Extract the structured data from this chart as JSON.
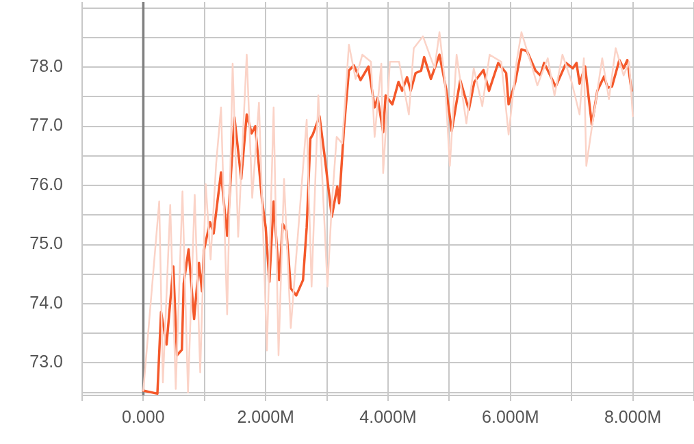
{
  "chart_data": {
    "type": "line",
    "marker": "none",
    "grid": true,
    "xlim": [
      -1,
      9
    ],
    "xticks": [
      {
        "value": -1,
        "label": null
      },
      {
        "value": 0,
        "label": "0.000"
      },
      {
        "value": 1,
        "label": null
      },
      {
        "value": 2,
        "label": "2.000M"
      },
      {
        "value": 3,
        "label": null
      },
      {
        "value": 4,
        "label": "4.000M"
      },
      {
        "value": 5,
        "label": null
      },
      {
        "value": 6,
        "label": "6.000M"
      },
      {
        "value": 7,
        "label": null
      },
      {
        "value": 8,
        "label": "8.000M"
      },
      {
        "value": 9,
        "label": null
      }
    ],
    "ylim": [
      72.45,
      79.1
    ],
    "yticks": [
      {
        "value": 72.5,
        "label": null
      },
      {
        "value": 73,
        "label": "73.0"
      },
      {
        "value": 73.5,
        "label": null
      },
      {
        "value": 74,
        "label": "74.0"
      },
      {
        "value": 74.5,
        "label": null
      },
      {
        "value": 75,
        "label": "75.0"
      },
      {
        "value": 75.5,
        "label": null
      },
      {
        "value": 76,
        "label": "76.0"
      },
      {
        "value": 76.5,
        "label": null
      },
      {
        "value": 77,
        "label": "77.0"
      },
      {
        "value": 77.5,
        "label": null
      },
      {
        "value": 78,
        "label": "78.0"
      },
      {
        "value": 78.5,
        "label": null
      },
      {
        "value": 79,
        "label": null
      }
    ],
    "ref_lines": [
      {
        "axis": "x",
        "value": 0,
        "color": "#808080"
      }
    ],
    "series": [
      {
        "color": "#fbd3c7",
        "x": [
          0,
          0.26,
          0.32,
          0.44,
          0.53,
          0.64,
          0.73,
          0.84,
          0.93,
          1.02,
          1.1,
          1.19,
          1.27,
          1.37,
          1.46,
          1.55,
          1.69,
          1.78,
          1.89,
          2.02,
          2.13,
          2.21,
          2.3,
          2.41,
          2.5,
          2.67,
          2.75,
          2.86,
          3.01,
          3.08,
          3.16,
          3.25,
          3.36,
          3.47,
          3.58,
          3.72,
          3.78,
          3.89,
          3.92,
          4.03,
          4.18,
          4.34,
          4.42,
          4.57,
          4.76,
          4.84,
          4.93,
          5.01,
          5.12,
          5.28,
          5.4,
          5.54,
          5.66,
          5.85,
          5.97,
          6.1,
          6.18,
          6.36,
          6.44,
          6.61,
          6.72,
          6.85,
          7,
          7.13,
          7.2,
          7.24,
          7.34,
          7.5,
          7.61,
          7.72,
          7.85,
          7.94,
          8
        ],
        "values": [
          72.53,
          75.73,
          72.67,
          75.67,
          72.56,
          75.9,
          72.5,
          75.84,
          72.84,
          76.02,
          74.75,
          76.36,
          77.32,
          73.82,
          78.06,
          75.13,
          78.21,
          75.79,
          77.4,
          73.21,
          77.32,
          73.13,
          76.11,
          73.59,
          74.81,
          77.11,
          74.29,
          77.52,
          74.29,
          75.67,
          76.82,
          76.71,
          78.38,
          77.8,
          78.21,
          78.09,
          76.82,
          78.06,
          76.21,
          78.09,
          78.09,
          77.2,
          78.32,
          78.52,
          77.98,
          78.59,
          77.75,
          76.33,
          78.21,
          77.05,
          77.98,
          77.34,
          78.21,
          78.09,
          76.86,
          78.09,
          78.59,
          77.98,
          77.69,
          78.15,
          77.52,
          78.21,
          77.75,
          77.2,
          78.15,
          76.33,
          77.05,
          78.15,
          77.46,
          78.32,
          77.86,
          78.09,
          77.17
        ]
      },
      {
        "color": "#f4582a",
        "x": [
          0,
          0.23,
          0.29,
          0.38,
          0.49,
          0.55,
          0.63,
          0.66,
          0.74,
          0.83,
          0.91,
          0.96,
          0.99,
          1.09,
          1.15,
          1.18,
          1.27,
          1.37,
          1.49,
          1.6,
          1.69,
          1.77,
          1.83,
          1.94,
          2,
          2.06,
          2.13,
          2.22,
          2.28,
          2.34,
          2.41,
          2.5,
          2.61,
          2.67,
          2.73,
          2.77,
          2.88,
          2.97,
          3.08,
          3.17,
          3.2,
          3.28,
          3.36,
          3.44,
          3.55,
          3.68,
          3.78,
          3.83,
          3.92,
          3.96,
          4.07,
          4.17,
          4.23,
          4.31,
          4.37,
          4.45,
          4.54,
          4.59,
          4.7,
          4.84,
          4.95,
          5.04,
          5.18,
          5.32,
          5.41,
          5.56,
          5.65,
          5.8,
          5.93,
          5.97,
          6.08,
          6.18,
          6.27,
          6.41,
          6.49,
          6.55,
          6.74,
          6.91,
          7.02,
          7.08,
          7.13,
          7.22,
          7.33,
          7.42,
          7.53,
          7.59,
          7.66,
          7.78,
          7.85,
          7.91,
          7.98
        ],
        "values": [
          72.53,
          72.48,
          73.86,
          73.31,
          74.63,
          73.13,
          73.22,
          74.34,
          74.92,
          73.74,
          74.69,
          74.21,
          74.9,
          75.38,
          75.19,
          75.46,
          76.22,
          75.15,
          77.15,
          76.11,
          77.2,
          76.88,
          77.0,
          75.75,
          75.29,
          74.37,
          75.73,
          74.4,
          75.35,
          75.23,
          74.26,
          74.14,
          74.4,
          75.29,
          76.79,
          76.86,
          77.17,
          76.44,
          75.47,
          75.98,
          75.7,
          76.97,
          77.94,
          78.03,
          77.78,
          78.01,
          77.32,
          77.48,
          76.9,
          77.52,
          77.37,
          77.75,
          77.6,
          77.83,
          77.6,
          77.9,
          77.94,
          78.17,
          77.8,
          78.21,
          77.63,
          76.92,
          77.78,
          77.28,
          77.75,
          77.95,
          77.6,
          78.07,
          77.9,
          77.37,
          77.75,
          78.3,
          78.27,
          77.94,
          77.86,
          78.07,
          77.67,
          78.07,
          77.98,
          78.07,
          77.72,
          78.01,
          77.03,
          77.6,
          77.84,
          77.65,
          77.67,
          78.12,
          77.98,
          78.12,
          77.6
        ]
      }
    ]
  }
}
